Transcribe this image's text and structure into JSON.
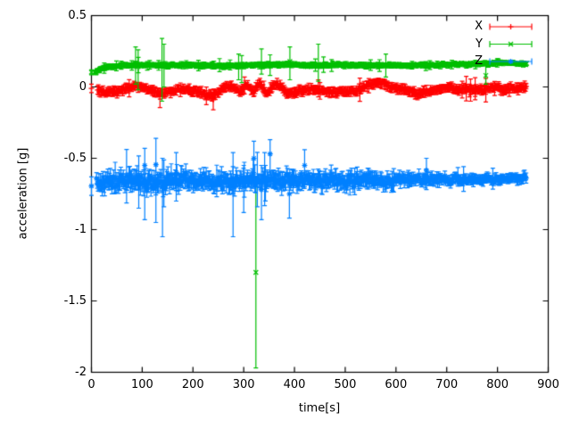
{
  "figure": {
    "background": "#ffffff",
    "axis_color": "#000000"
  },
  "chart_data": {
    "type": "scatter",
    "style": "points-with-yerrorbars",
    "title": "",
    "xlabel": "time[s]",
    "ylabel": "acceleration [g]",
    "xlim": [
      0,
      900
    ],
    "ylim": [
      -2,
      0.5
    ],
    "xticks": [
      0,
      100,
      200,
      300,
      400,
      500,
      600,
      700,
      800,
      900
    ],
    "xtick_labels": [
      "0",
      "100",
      "200",
      "300",
      "400",
      "500",
      "600",
      "700",
      "800",
      "900"
    ],
    "yticks": [
      0.5,
      0,
      -0.5,
      -1,
      -1.5,
      -2
    ],
    "ytick_labels": [
      "0.5",
      "0",
      "-0.5",
      "-1",
      "-1.5",
      "-2"
    ],
    "grid": false,
    "legend": {
      "position": "top-right",
      "entries": [
        "X",
        "Y",
        "Z"
      ]
    },
    "series": [
      {
        "name": "X",
        "color": "#ff0000",
        "marker": "plus",
        "t_start": 12,
        "t_end": 858,
        "dt": 1.6,
        "seed": 101,
        "band_halfwidth": [
          [
            12,
            0.018
          ],
          [
            858,
            0.018
          ]
        ],
        "err_scale": 1.4,
        "mean_keypoints": [
          [
            12,
            -0.02
          ],
          [
            25,
            -0.033
          ],
          [
            45,
            -0.035
          ],
          [
            65,
            -0.018
          ],
          [
            85,
            0.004
          ],
          [
            100,
            -0.002
          ],
          [
            115,
            -0.018
          ],
          [
            132,
            -0.048
          ],
          [
            145,
            -0.038
          ],
          [
            162,
            -0.022
          ],
          [
            185,
            -0.02
          ],
          [
            210,
            -0.028
          ],
          [
            232,
            -0.065
          ],
          [
            248,
            -0.04
          ],
          [
            263,
            0.0
          ],
          [
            278,
            0.005
          ],
          [
            293,
            -0.04
          ],
          [
            305,
            0.015
          ],
          [
            318,
            -0.035
          ],
          [
            332,
            0.022
          ],
          [
            346,
            -0.045
          ],
          [
            358,
            0.008
          ],
          [
            372,
            0.018
          ],
          [
            386,
            -0.05
          ],
          [
            400,
            -0.042
          ],
          [
            415,
            -0.022
          ],
          [
            435,
            -0.015
          ],
          [
            458,
            -0.025
          ],
          [
            478,
            -0.042
          ],
          [
            498,
            -0.032
          ],
          [
            520,
            -0.03
          ],
          [
            542,
            0.005
          ],
          [
            558,
            0.033
          ],
          [
            575,
            0.027
          ],
          [
            595,
            -0.008
          ],
          [
            615,
            -0.018
          ],
          [
            640,
            -0.048
          ],
          [
            662,
            -0.035
          ],
          [
            682,
            -0.02
          ],
          [
            702,
            -0.006
          ],
          [
            720,
            -0.018
          ],
          [
            738,
            -0.012
          ],
          [
            758,
            -0.018
          ],
          [
            772,
            -0.022
          ],
          [
            788,
            -0.008
          ],
          [
            802,
            0.0
          ],
          [
            814,
            -0.028
          ],
          [
            828,
            -0.006
          ],
          [
            845,
            -0.01
          ],
          [
            858,
            -0.008
          ]
        ],
        "outliers": [
          [
            0,
            -0.01,
            -0.04,
            0.02
          ],
          [
            135,
            -0.055,
            -0.145,
            -0.01
          ],
          [
            240,
            -0.09,
            -0.16,
            -0.04
          ],
          [
            447,
            -0.012,
            -0.07,
            0.05
          ],
          [
            747,
            -0.02,
            -0.1,
            0.055
          ],
          [
            756,
            -0.01,
            -0.09,
            0.065
          ],
          [
            777,
            -0.025,
            -0.105,
            0.06
          ]
        ]
      },
      {
        "name": "Y",
        "color": "#00bf00",
        "marker": "cross",
        "t_start": 6,
        "t_end": 858,
        "dt": 1.6,
        "seed": 202,
        "band_halfwidth": [
          [
            6,
            0.01
          ],
          [
            858,
            0.01
          ]
        ],
        "err_scale": 1.4,
        "mean_keypoints": [
          [
            6,
            0.102
          ],
          [
            15,
            0.118
          ],
          [
            28,
            0.136
          ],
          [
            45,
            0.147
          ],
          [
            70,
            0.151
          ],
          [
            110,
            0.154
          ],
          [
            150,
            0.151
          ],
          [
            190,
            0.154
          ],
          [
            230,
            0.149
          ],
          [
            270,
            0.149
          ],
          [
            310,
            0.152
          ],
          [
            350,
            0.154
          ],
          [
            385,
            0.157
          ],
          [
            420,
            0.151
          ],
          [
            460,
            0.152
          ],
          [
            500,
            0.154
          ],
          [
            545,
            0.151
          ],
          [
            585,
            0.15
          ],
          [
            625,
            0.152
          ],
          [
            665,
            0.152
          ],
          [
            705,
            0.157
          ],
          [
            745,
            0.16
          ],
          [
            780,
            0.165
          ],
          [
            800,
            0.171
          ],
          [
            822,
            0.171
          ],
          [
            840,
            0.163
          ],
          [
            858,
            0.16
          ]
        ],
        "outliers": [
          [
            0,
            0.103,
            0.085,
            0.12
          ],
          [
            87,
            0.15,
            0.02,
            0.28
          ],
          [
            92,
            0.142,
            -0.02,
            0.26
          ],
          [
            139,
            0.158,
            -0.1,
            0.34
          ],
          [
            143,
            0.15,
            0.0,
            0.3
          ],
          [
            290,
            0.14,
            0.05,
            0.23
          ],
          [
            296,
            0.145,
            0.03,
            0.22
          ],
          [
            324,
            -1.3,
            -1.97,
            -0.66
          ],
          [
            335,
            0.152,
            0.09,
            0.266
          ],
          [
            352,
            0.16,
            0.08,
            0.225
          ],
          [
            391,
            0.178,
            0.05,
            0.28
          ],
          [
            447,
            0.16,
            0.04,
            0.3
          ],
          [
            580,
            0.15,
            0.07,
            0.23
          ],
          [
            777,
            0.08,
            0.02,
            0.16
          ]
        ]
      },
      {
        "name": "Z",
        "color": "#0080ff",
        "marker": "star",
        "t_start": 10,
        "t_end": 858,
        "dt": 1.6,
        "seed": 303,
        "band_halfwidth": [
          [
            10,
            0.045
          ],
          [
            60,
            0.058
          ],
          [
            140,
            0.06
          ],
          [
            220,
            0.055
          ],
          [
            300,
            0.055
          ],
          [
            380,
            0.052
          ],
          [
            460,
            0.05
          ],
          [
            540,
            0.045
          ],
          [
            620,
            0.038
          ],
          [
            700,
            0.032
          ],
          [
            780,
            0.03
          ],
          [
            858,
            0.028
          ]
        ],
        "err_scale": 0.9,
        "mean_keypoints": [
          [
            10,
            -0.675
          ],
          [
            30,
            -0.665
          ],
          [
            70,
            -0.66
          ],
          [
            120,
            -0.668
          ],
          [
            170,
            -0.657
          ],
          [
            220,
            -0.66
          ],
          [
            270,
            -0.662
          ],
          [
            320,
            -0.652
          ],
          [
            360,
            -0.66
          ],
          [
            400,
            -0.663
          ],
          [
            440,
            -0.655
          ],
          [
            480,
            -0.652
          ],
          [
            520,
            -0.655
          ],
          [
            560,
            -0.652
          ],
          [
            600,
            -0.65
          ],
          [
            640,
            -0.65
          ],
          [
            680,
            -0.648
          ],
          [
            720,
            -0.646
          ],
          [
            760,
            -0.646
          ],
          [
            800,
            -0.645
          ],
          [
            830,
            -0.643
          ],
          [
            858,
            -0.64
          ]
        ],
        "outliers": [
          [
            0,
            -0.695,
            -0.76,
            -0.63
          ],
          [
            105,
            -0.55,
            -0.93,
            -0.43
          ],
          [
            127,
            -0.545,
            -0.95,
            -0.36
          ],
          [
            140,
            -0.7,
            -1.05,
            -0.5
          ],
          [
            167,
            -0.6,
            -0.8,
            -0.46
          ],
          [
            279,
            -0.66,
            -1.05,
            -0.46
          ],
          [
            300,
            -0.7,
            -0.88,
            -0.55
          ],
          [
            320,
            -0.5,
            -0.6,
            -0.38
          ],
          [
            335,
            -0.72,
            -0.93,
            -0.55
          ],
          [
            352,
            -0.47,
            -0.62,
            -0.37
          ],
          [
            390,
            -0.75,
            -0.92,
            -0.6
          ],
          [
            420,
            -0.55,
            -0.7,
            -0.44
          ],
          [
            660,
            -0.585,
            -0.72,
            -0.5
          ]
        ]
      }
    ]
  }
}
